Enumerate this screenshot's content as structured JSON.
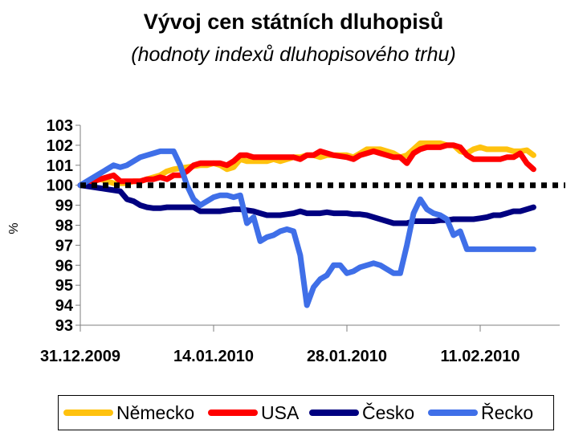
{
  "colors": {
    "Německo": "#FFC20E",
    "USA": "#FF0000",
    "Česko": "#000080",
    "Řecko": "#3F6FE8",
    "reference": "#000000"
  },
  "chart_data": {
    "type": "line",
    "title": "Vývoj cen státních dluhopisů",
    "subtitle": "(hodnoty indexů dluhopisového trhu)",
    "ylabel": "%",
    "xlabel": "",
    "ylim": [
      93,
      103
    ],
    "yticks": [
      103,
      102,
      101,
      100,
      99,
      98,
      97,
      96,
      95,
      94,
      93
    ],
    "x_tick_labels": [
      "31.12.2009",
      "14.01.2010",
      "28.01.2010",
      "11.02.2010"
    ],
    "x_tick_index": [
      0,
      10,
      20,
      30
    ],
    "x": [
      0,
      0.5,
      1,
      1.5,
      2,
      2.5,
      3,
      3.5,
      4,
      4.5,
      5,
      5.5,
      6,
      6.5,
      7,
      7.5,
      8,
      8.5,
      9,
      9.5,
      10,
      10.5,
      11,
      11.5,
      12,
      12.5,
      13,
      13.5,
      14,
      14.5,
      15,
      15.5,
      16,
      16.5,
      17,
      17.5,
      18,
      18.5,
      19,
      19.5,
      20,
      20.5,
      21,
      21.5,
      22,
      22.5,
      23,
      23.5,
      24,
      24.5,
      25,
      25.5,
      26,
      26.5,
      27,
      27.5,
      28,
      28.5,
      29,
      29.5,
      30,
      30.5,
      31,
      31.5,
      32,
      32.5,
      33,
      33.5,
      34
    ],
    "reference_line": 100,
    "legend_position": "bottom",
    "grid": false,
    "series": [
      {
        "name": "Německo",
        "values": [
          100,
          100.1,
          100.2,
          100.3,
          100.2,
          100.1,
          100.1,
          100.1,
          100.2,
          100.2,
          100.3,
          100.4,
          100.5,
          100.7,
          100.8,
          100.85,
          100.9,
          100.95,
          101,
          101,
          101.1,
          101,
          100.8,
          100.9,
          101.3,
          101.2,
          101.2,
          101.2,
          101.2,
          101.3,
          101.2,
          101.3,
          101.4,
          101.4,
          101.5,
          101.5,
          101.4,
          101.5,
          101.5,
          101.5,
          101.5,
          101.4,
          101.6,
          101.8,
          101.8,
          101.8,
          101.7,
          101.6,
          101.4,
          101.5,
          101.8,
          102.1,
          102.1,
          102.1,
          102.1,
          102,
          102,
          101.7,
          101.6,
          101.8,
          101.9,
          101.8,
          101.8,
          101.8,
          101.8,
          101.7,
          101.7,
          101.75,
          101.5
        ]
      },
      {
        "name": "USA",
        "values": [
          100,
          100.1,
          100.2,
          100.3,
          100.4,
          100.5,
          100.2,
          100.2,
          100.2,
          100.2,
          100.3,
          100.3,
          100.4,
          100.3,
          100.5,
          100.5,
          100.7,
          101,
          101.1,
          101.1,
          101.1,
          101.1,
          101,
          101.2,
          101.5,
          101.5,
          101.4,
          101.4,
          101.4,
          101.4,
          101.4,
          101.4,
          101.4,
          101.3,
          101.5,
          101.5,
          101.7,
          101.6,
          101.5,
          101.45,
          101.4,
          101.3,
          101.5,
          101.6,
          101.7,
          101.6,
          101.5,
          101.4,
          101.4,
          101.1,
          101.6,
          101.8,
          101.9,
          101.9,
          101.9,
          102,
          102,
          101.9,
          101.5,
          101.3,
          101.3,
          101.3,
          101.3,
          101.3,
          101.4,
          101.4,
          101.6,
          101.1,
          100.8
        ]
      },
      {
        "name": "Česko",
        "values": [
          100,
          99.95,
          99.9,
          99.85,
          99.8,
          99.75,
          99.7,
          99.3,
          99.2,
          99,
          98.9,
          98.85,
          98.85,
          98.9,
          98.9,
          98.9,
          98.9,
          98.9,
          98.7,
          98.7,
          98.7,
          98.7,
          98.75,
          98.8,
          98.8,
          98.75,
          98.7,
          98.6,
          98.5,
          98.5,
          98.5,
          98.55,
          98.6,
          98.7,
          98.6,
          98.6,
          98.6,
          98.65,
          98.6,
          98.6,
          98.6,
          98.55,
          98.55,
          98.5,
          98.4,
          98.3,
          98.2,
          98.1,
          98.1,
          98.1,
          98.2,
          98.2,
          98.2,
          98.2,
          98.25,
          98.25,
          98.3,
          98.3,
          98.3,
          98.3,
          98.35,
          98.4,
          98.5,
          98.5,
          98.6,
          98.7,
          98.7,
          98.8,
          98.9
        ]
      },
      {
        "name": "Řecko",
        "values": [
          100,
          100.2,
          100.4,
          100.6,
          100.8,
          101.0,
          100.9,
          101.0,
          101.2,
          101.4,
          101.5,
          101.6,
          101.7,
          101.7,
          101.7,
          101.0,
          100.0,
          99.3,
          99.0,
          99.2,
          99.4,
          99.5,
          99.5,
          99.4,
          99.5,
          98.1,
          98.4,
          97.2,
          97.4,
          97.5,
          97.7,
          97.8,
          97.7,
          96.5,
          94.0,
          94.9,
          95.3,
          95.5,
          96.0,
          96.0,
          95.6,
          95.7,
          95.9,
          96.0,
          96.1,
          96.0,
          95.8,
          95.6,
          95.6,
          97.0,
          98.6,
          99.3,
          98.8,
          98.6,
          98.5,
          98.3,
          97.5,
          97.7,
          96.8,
          96.8,
          96.8,
          96.8,
          96.8,
          96.8,
          96.8,
          96.8,
          96.8,
          96.8,
          96.8
        ]
      }
    ]
  }
}
